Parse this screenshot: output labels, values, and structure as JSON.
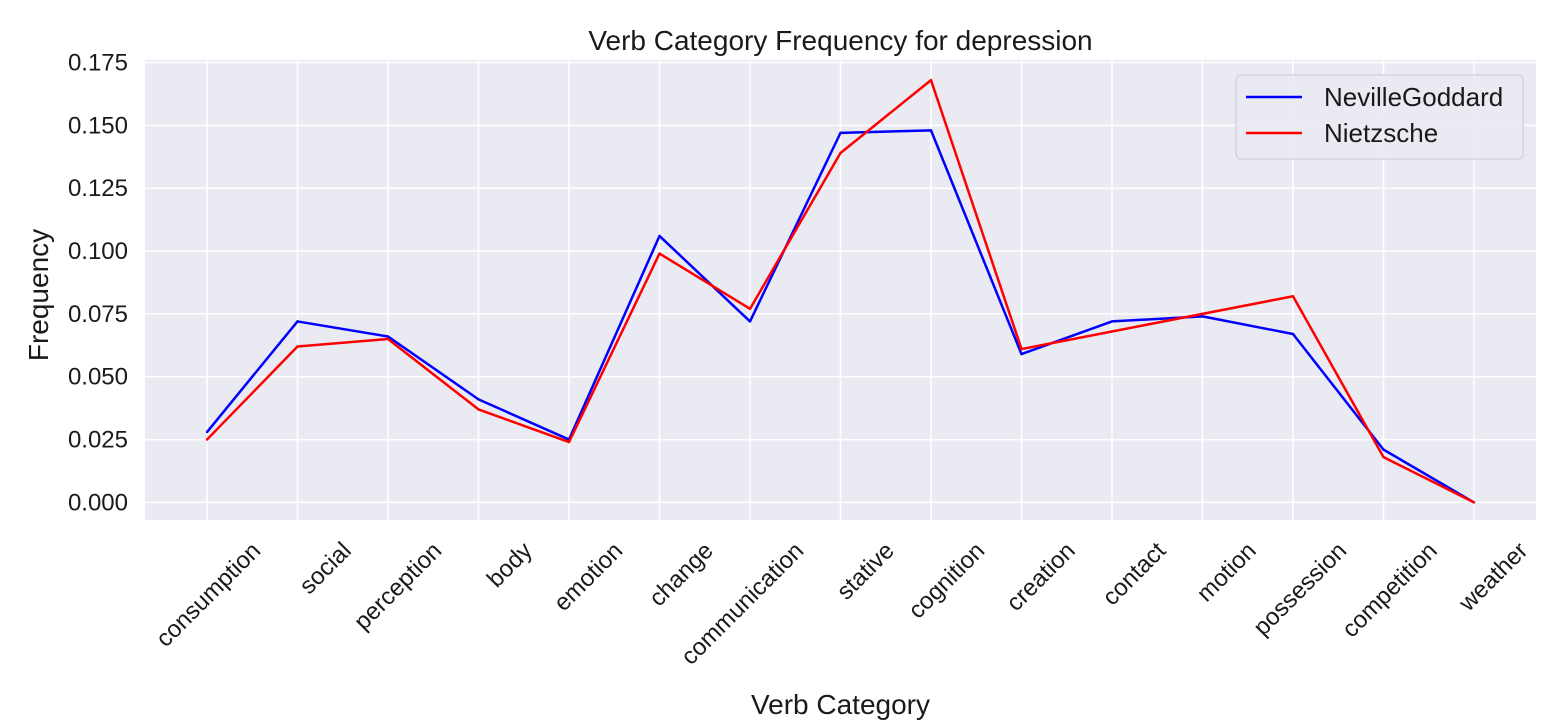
{
  "chart_data": {
    "type": "line",
    "title": "Verb Category Frequency for depression",
    "xlabel": "Verb Category",
    "ylabel": "Frequency",
    "categories": [
      "consumption",
      "social",
      "perception",
      "body",
      "emotion",
      "change",
      "communication",
      "stative",
      "cognition",
      "creation",
      "contact",
      "motion",
      "possession",
      "competition",
      "weather"
    ],
    "ylim": [
      -0.007,
      0.176
    ],
    "yticks": [
      "0.000",
      "0.025",
      "0.050",
      "0.075",
      "0.100",
      "0.125",
      "0.150",
      "0.175"
    ],
    "grid": true,
    "legend_position": "top-right",
    "series": [
      {
        "name": "NevilleGoddard",
        "color": "#0000ff",
        "values": [
          0.028,
          0.072,
          0.066,
          0.041,
          0.025,
          0.106,
          0.072,
          0.147,
          0.148,
          0.059,
          0.072,
          0.074,
          0.067,
          0.021,
          0.0
        ]
      },
      {
        "name": "Nietzsche",
        "color": "#ff0000",
        "values": [
          0.025,
          0.062,
          0.065,
          0.037,
          0.024,
          0.099,
          0.077,
          0.139,
          0.168,
          0.061,
          0.068,
          0.075,
          0.082,
          0.018,
          0.0
        ]
      }
    ],
    "background_color": "#eaeaf2",
    "grid_color": "#ffffff"
  }
}
